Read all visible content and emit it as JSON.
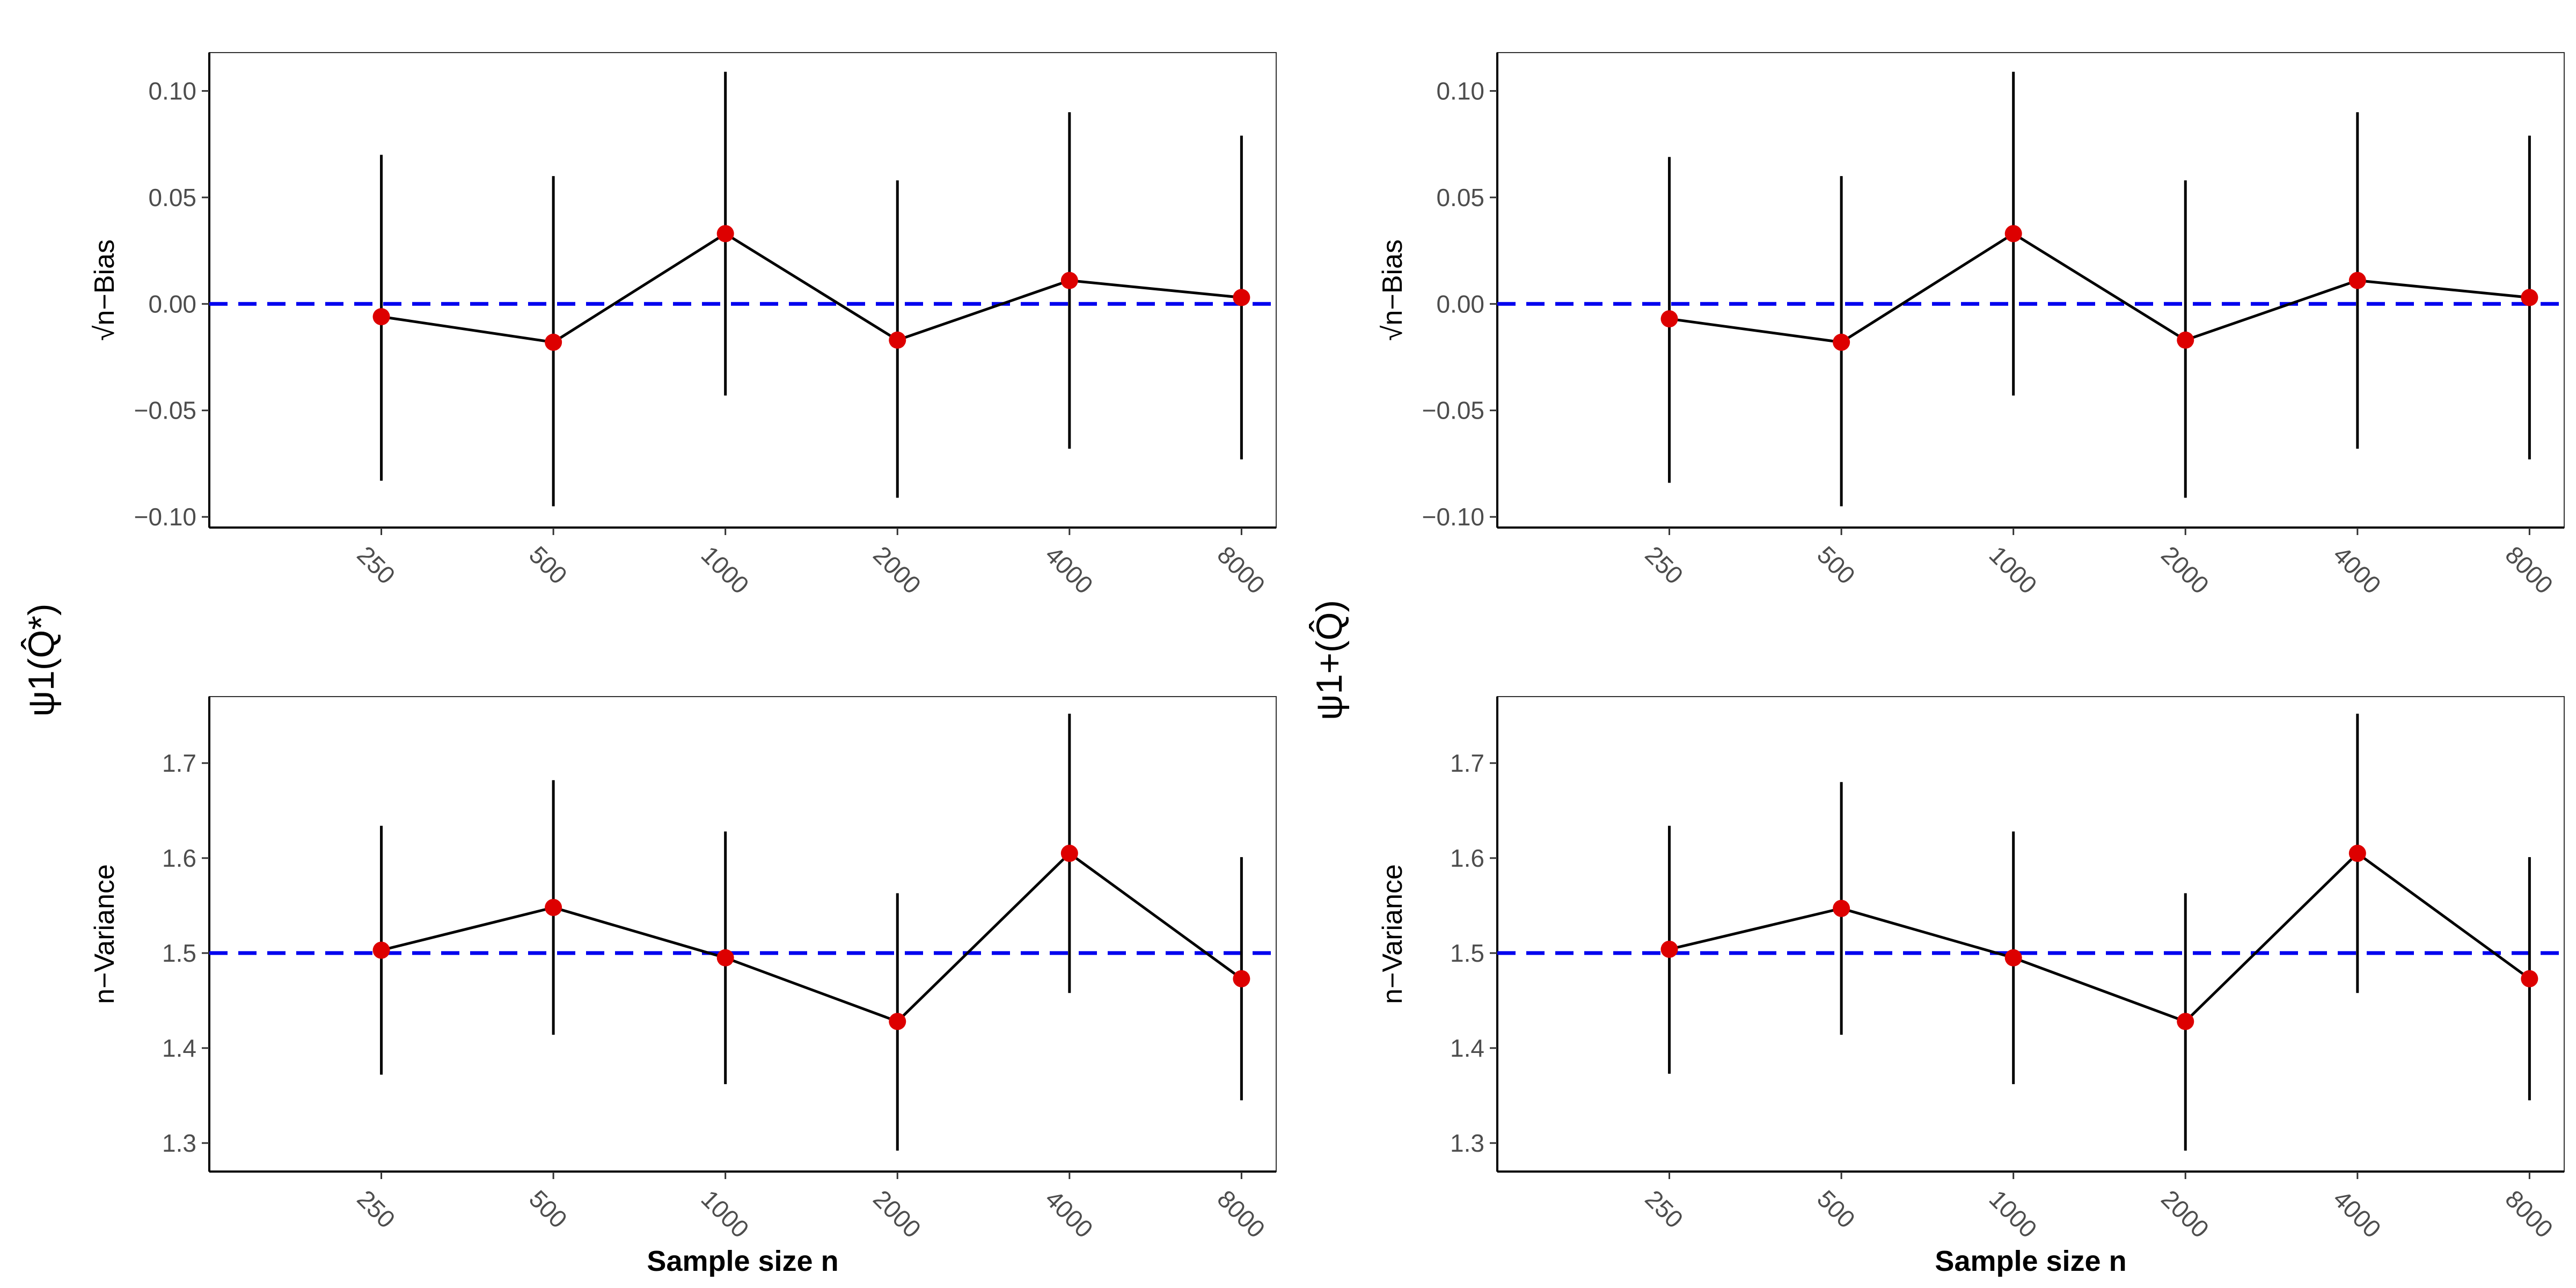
{
  "colors": {
    "point": "#dd0000",
    "ref_line": "#0000ee",
    "line": "#000000"
  },
  "chart_data": [
    {
      "type": "line",
      "panel": "top-left",
      "row_label": "ψ1(Q̂*)",
      "ylabel": "√n−Bias",
      "xlabel": "",
      "ylim": [
        -0.105,
        0.118
      ],
      "yticks": [
        -0.1,
        -0.05,
        0.0,
        0.05,
        0.1
      ],
      "ytick_labels": [
        "−0.10",
        "−0.05",
        "0.00",
        "0.05",
        "0.10"
      ],
      "x": [
        250,
        500,
        1000,
        2000,
        4000,
        8000
      ],
      "xtick_labels": [
        "250",
        "500",
        "1000",
        "2000",
        "4000",
        "8000"
      ],
      "values": [
        -0.006,
        -0.018,
        0.033,
        -0.017,
        0.011,
        0.003
      ],
      "lower": [
        -0.083,
        -0.095,
        -0.043,
        -0.091,
        -0.068,
        -0.073
      ],
      "upper": [
        0.07,
        0.06,
        0.109,
        0.058,
        0.09,
        0.079
      ],
      "reference": 0.0
    },
    {
      "type": "line",
      "panel": "top-right",
      "row_label": "ψ1+(Q̂)",
      "ylabel": "√n−Bias",
      "xlabel": "",
      "ylim": [
        -0.105,
        0.118
      ],
      "yticks": [
        -0.1,
        -0.05,
        0.0,
        0.05,
        0.1
      ],
      "ytick_labels": [
        "−0.10",
        "−0.05",
        "0.00",
        "0.05",
        "0.10"
      ],
      "x": [
        250,
        500,
        1000,
        2000,
        4000,
        8000
      ],
      "xtick_labels": [
        "250",
        "500",
        "1000",
        "2000",
        "4000",
        "8000"
      ],
      "values": [
        -0.007,
        -0.018,
        0.033,
        -0.017,
        0.011,
        0.003
      ],
      "lower": [
        -0.084,
        -0.095,
        -0.043,
        -0.091,
        -0.068,
        -0.073
      ],
      "upper": [
        0.069,
        0.06,
        0.109,
        0.058,
        0.09,
        0.079
      ],
      "reference": 0.0
    },
    {
      "type": "line",
      "panel": "bottom-left",
      "row_label": "",
      "ylabel": "n−Variance",
      "xlabel": "Sample size n",
      "ylim": [
        1.27,
        1.77
      ],
      "yticks": [
        1.3,
        1.4,
        1.5,
        1.6,
        1.7
      ],
      "ytick_labels": [
        "1.3",
        "1.4",
        "1.5",
        "1.6",
        "1.7"
      ],
      "x": [
        250,
        500,
        1000,
        2000,
        4000,
        8000
      ],
      "xtick_labels": [
        "250",
        "500",
        "1000",
        "2000",
        "4000",
        "8000"
      ],
      "values": [
        1.503,
        1.548,
        1.495,
        1.428,
        1.605,
        1.473
      ],
      "lower": [
        1.372,
        1.414,
        1.362,
        1.292,
        1.458,
        1.345
      ],
      "upper": [
        1.634,
        1.682,
        1.628,
        1.563,
        1.752,
        1.601
      ],
      "reference": 1.5
    },
    {
      "type": "line",
      "panel": "bottom-right",
      "row_label": "",
      "ylabel": "n−Variance",
      "xlabel": "Sample size n",
      "ylim": [
        1.27,
        1.77
      ],
      "yticks": [
        1.3,
        1.4,
        1.5,
        1.6,
        1.7
      ],
      "ytick_labels": [
        "1.3",
        "1.4",
        "1.5",
        "1.6",
        "1.7"
      ],
      "x": [
        250,
        500,
        1000,
        2000,
        4000,
        8000
      ],
      "xtick_labels": [
        "250",
        "500",
        "1000",
        "2000",
        "4000",
        "8000"
      ],
      "values": [
        1.504,
        1.547,
        1.495,
        1.428,
        1.605,
        1.473
      ],
      "lower": [
        1.373,
        1.414,
        1.362,
        1.292,
        1.458,
        1.345
      ],
      "upper": [
        1.634,
        1.68,
        1.628,
        1.563,
        1.752,
        1.601
      ],
      "reference": 1.5
    }
  ]
}
